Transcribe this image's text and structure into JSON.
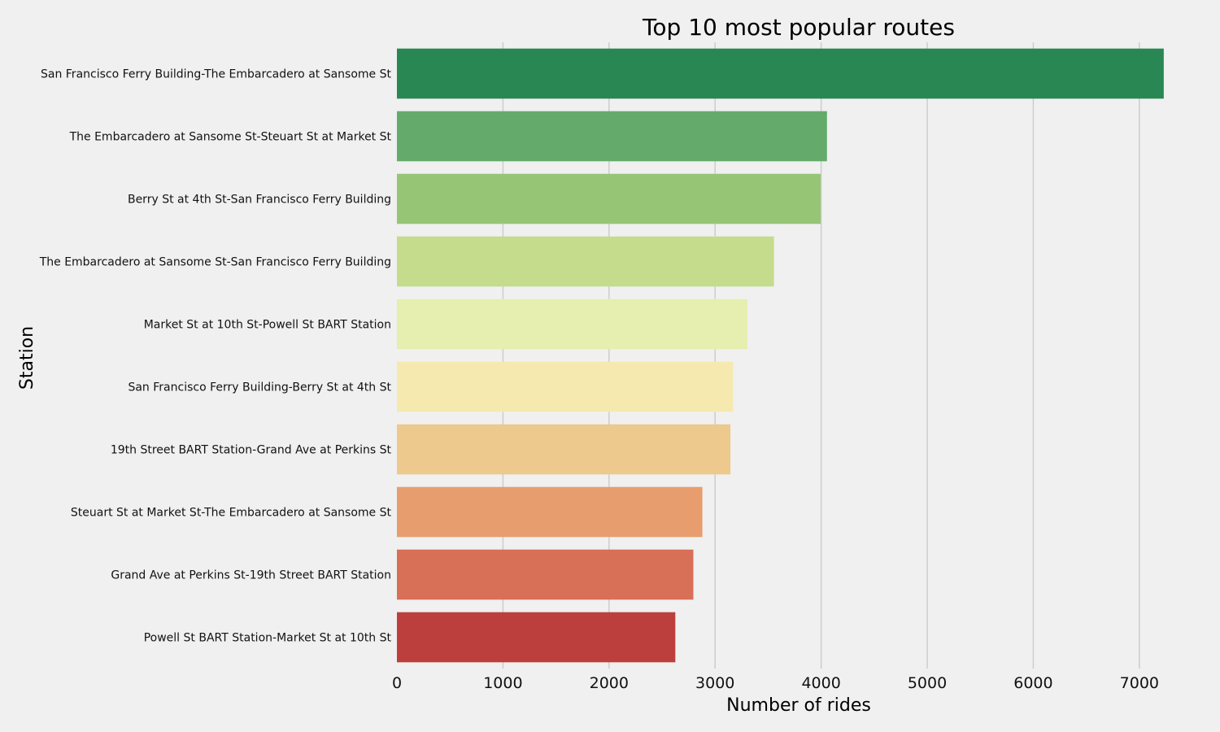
{
  "chart_data": {
    "type": "bar",
    "orientation": "horizontal",
    "title": "Top 10 most popular routes",
    "xlabel": "Number of rides",
    "ylabel": "Station",
    "xlim": [
      0,
      7400
    ],
    "xticks": [
      0,
      1000,
      2000,
      3000,
      4000,
      5000,
      6000,
      7000
    ],
    "grid": "x",
    "categories": [
      "San Francisco Ferry Building-The Embarcadero at Sansome St",
      "The Embarcadero at Sansome St-Steuart St at Market St",
      "Berry St at 4th St-San Francisco Ferry Building",
      "The Embarcadero at Sansome St-San Francisco Ferry Building",
      "Market St at 10th St-Powell St BART Station",
      "San Francisco Ferry Building-Berry St at 4th St",
      "19th Street BART Station-Grand Ave at Perkins St",
      "Steuart St at Market St-The Embarcadero at Sansome St",
      "Grand Ave at Perkins St-19th Street BART Station",
      "Powell St BART Station-Market St at 10th St"
    ],
    "values": [
      7230,
      4055,
      3995,
      3555,
      3305,
      3170,
      3145,
      2880,
      2795,
      2625
    ],
    "colors": [
      "#288753",
      "#64ab6b",
      "#96c576",
      "#c4dc8b",
      "#e6eeb0",
      "#f5e9b0",
      "#edc98d",
      "#e79d6d",
      "#d86f57",
      "#bc3f3e"
    ]
  }
}
